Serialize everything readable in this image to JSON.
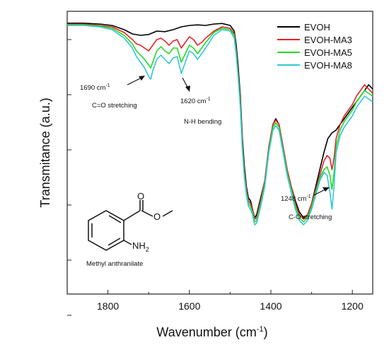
{
  "chart_data": {
    "type": "line",
    "xlabel": "Wavenumber (cm",
    "xlabel_sup": "-1",
    "xlabel_close": ")",
    "ylabel": "Transmitance (a.u.)",
    "xlim": [
      1900,
      1150
    ],
    "x_reversed": true,
    "ylim": [
      0,
      1
    ],
    "y_ticks_labeled": false,
    "xticks": [
      1800,
      1600,
      1400,
      1200
    ],
    "legend_position": "top-right",
    "series": [
      {
        "name": "EVOH",
        "color": "#000000",
        "points": [
          [
            1900,
            0.958
          ],
          [
            1860,
            0.958
          ],
          [
            1820,
            0.955
          ],
          [
            1790,
            0.95
          ],
          [
            1760,
            0.935
          ],
          [
            1740,
            0.92
          ],
          [
            1720,
            0.915
          ],
          [
            1700,
            0.918
          ],
          [
            1680,
            0.93
          ],
          [
            1660,
            0.928
          ],
          [
            1640,
            0.935
          ],
          [
            1620,
            0.945
          ],
          [
            1600,
            0.95
          ],
          [
            1580,
            0.952
          ],
          [
            1560,
            0.95
          ],
          [
            1540,
            0.955
          ],
          [
            1520,
            0.957
          ],
          [
            1500,
            0.95
          ],
          [
            1490,
            0.93
          ],
          [
            1485,
            0.88
          ],
          [
            1480,
            0.8
          ],
          [
            1475,
            0.7
          ],
          [
            1470,
            0.55
          ],
          [
            1465,
            0.45
          ],
          [
            1460,
            0.38
          ],
          [
            1455,
            0.34
          ],
          [
            1450,
            0.33
          ],
          [
            1445,
            0.3
          ],
          [
            1440,
            0.27
          ],
          [
            1435,
            0.28
          ],
          [
            1425,
            0.34
          ],
          [
            1415,
            0.4
          ],
          [
            1405,
            0.52
          ],
          [
            1395,
            0.6
          ],
          [
            1388,
            0.62
          ],
          [
            1380,
            0.6
          ],
          [
            1370,
            0.52
          ],
          [
            1360,
            0.44
          ],
          [
            1350,
            0.38
          ],
          [
            1340,
            0.33
          ],
          [
            1330,
            0.29
          ],
          [
            1320,
            0.27
          ],
          [
            1310,
            0.28
          ],
          [
            1300,
            0.32
          ],
          [
            1290,
            0.38
          ],
          [
            1280,
            0.44
          ],
          [
            1270,
            0.5
          ],
          [
            1260,
            0.55
          ],
          [
            1250,
            0.57
          ],
          [
            1240,
            0.58
          ],
          [
            1230,
            0.6
          ],
          [
            1220,
            0.62
          ],
          [
            1210,
            0.64
          ],
          [
            1200,
            0.66
          ],
          [
            1190,
            0.68
          ],
          [
            1180,
            0.7
          ],
          [
            1170,
            0.72
          ],
          [
            1160,
            0.74
          ],
          [
            1150,
            0.725
          ]
        ]
      },
      {
        "name": "EVOH-MA3",
        "color": "#e8202a",
        "points": [
          [
            1900,
            0.955
          ],
          [
            1860,
            0.955
          ],
          [
            1820,
            0.95
          ],
          [
            1790,
            0.945
          ],
          [
            1760,
            0.925
          ],
          [
            1740,
            0.9
          ],
          [
            1730,
            0.885
          ],
          [
            1720,
            0.88
          ],
          [
            1710,
            0.87
          ],
          [
            1700,
            0.86
          ],
          [
            1690,
            0.88
          ],
          [
            1680,
            0.9
          ],
          [
            1670,
            0.905
          ],
          [
            1660,
            0.895
          ],
          [
            1650,
            0.88
          ],
          [
            1640,
            0.895
          ],
          [
            1630,
            0.9
          ],
          [
            1620,
            0.87
          ],
          [
            1610,
            0.89
          ],
          [
            1600,
            0.91
          ],
          [
            1590,
            0.9
          ],
          [
            1580,
            0.88
          ],
          [
            1570,
            0.89
          ],
          [
            1560,
            0.905
          ],
          [
            1540,
            0.93
          ],
          [
            1520,
            0.945
          ],
          [
            1500,
            0.94
          ],
          [
            1490,
            0.92
          ],
          [
            1485,
            0.86
          ],
          [
            1480,
            0.78
          ],
          [
            1475,
            0.68
          ],
          [
            1470,
            0.53
          ],
          [
            1465,
            0.43
          ],
          [
            1460,
            0.37
          ],
          [
            1455,
            0.33
          ],
          [
            1450,
            0.32
          ],
          [
            1445,
            0.3
          ],
          [
            1440,
            0.265
          ],
          [
            1435,
            0.27
          ],
          [
            1425,
            0.33
          ],
          [
            1415,
            0.4
          ],
          [
            1405,
            0.52
          ],
          [
            1395,
            0.6
          ],
          [
            1388,
            0.615
          ],
          [
            1380,
            0.6
          ],
          [
            1370,
            0.52
          ],
          [
            1360,
            0.44
          ],
          [
            1350,
            0.38
          ],
          [
            1340,
            0.32
          ],
          [
            1330,
            0.28
          ],
          [
            1320,
            0.265
          ],
          [
            1310,
            0.28
          ],
          [
            1300,
            0.32
          ],
          [
            1290,
            0.37
          ],
          [
            1280,
            0.42
          ],
          [
            1270,
            0.47
          ],
          [
            1262,
            0.49
          ],
          [
            1255,
            0.48
          ],
          [
            1250,
            0.44
          ],
          [
            1245,
            0.48
          ],
          [
            1240,
            0.55
          ],
          [
            1230,
            0.6
          ],
          [
            1220,
            0.63
          ],
          [
            1210,
            0.65
          ],
          [
            1200,
            0.67
          ],
          [
            1190,
            0.7
          ],
          [
            1180,
            0.72
          ],
          [
            1170,
            0.74
          ],
          [
            1160,
            0.725
          ],
          [
            1150,
            0.71
          ]
        ]
      },
      {
        "name": "EVOH-MA5",
        "color": "#22dd22",
        "points": [
          [
            1900,
            0.952
          ],
          [
            1860,
            0.952
          ],
          [
            1820,
            0.948
          ],
          [
            1790,
            0.94
          ],
          [
            1760,
            0.915
          ],
          [
            1740,
            0.885
          ],
          [
            1730,
            0.86
          ],
          [
            1720,
            0.845
          ],
          [
            1710,
            0.83
          ],
          [
            1700,
            0.81
          ],
          [
            1695,
            0.8
          ],
          [
            1690,
            0.82
          ],
          [
            1680,
            0.86
          ],
          [
            1670,
            0.875
          ],
          [
            1660,
            0.86
          ],
          [
            1650,
            0.85
          ],
          [
            1640,
            0.87
          ],
          [
            1630,
            0.87
          ],
          [
            1620,
            0.82
          ],
          [
            1610,
            0.85
          ],
          [
            1600,
            0.88
          ],
          [
            1590,
            0.87
          ],
          [
            1580,
            0.85
          ],
          [
            1570,
            0.87
          ],
          [
            1560,
            0.89
          ],
          [
            1540,
            0.925
          ],
          [
            1520,
            0.94
          ],
          [
            1500,
            0.935
          ],
          [
            1490,
            0.915
          ],
          [
            1485,
            0.855
          ],
          [
            1480,
            0.77
          ],
          [
            1475,
            0.67
          ],
          [
            1470,
            0.52
          ],
          [
            1465,
            0.42
          ],
          [
            1460,
            0.36
          ],
          [
            1455,
            0.32
          ],
          [
            1450,
            0.31
          ],
          [
            1445,
            0.29
          ],
          [
            1440,
            0.255
          ],
          [
            1435,
            0.26
          ],
          [
            1425,
            0.32
          ],
          [
            1415,
            0.39
          ],
          [
            1405,
            0.51
          ],
          [
            1395,
            0.59
          ],
          [
            1388,
            0.605
          ],
          [
            1380,
            0.59
          ],
          [
            1370,
            0.51
          ],
          [
            1360,
            0.43
          ],
          [
            1350,
            0.37
          ],
          [
            1340,
            0.31
          ],
          [
            1330,
            0.27
          ],
          [
            1320,
            0.255
          ],
          [
            1310,
            0.27
          ],
          [
            1300,
            0.31
          ],
          [
            1290,
            0.36
          ],
          [
            1280,
            0.41
          ],
          [
            1270,
            0.44
          ],
          [
            1262,
            0.45
          ],
          [
            1255,
            0.42
          ],
          [
            1250,
            0.37
          ],
          [
            1245,
            0.43
          ],
          [
            1240,
            0.52
          ],
          [
            1230,
            0.58
          ],
          [
            1220,
            0.61
          ],
          [
            1210,
            0.63
          ],
          [
            1200,
            0.65
          ],
          [
            1190,
            0.68
          ],
          [
            1180,
            0.7
          ],
          [
            1170,
            0.72
          ],
          [
            1160,
            0.71
          ],
          [
            1150,
            0.7
          ]
        ]
      },
      {
        "name": "EVOH-MA8",
        "color": "#33c7d6",
        "points": [
          [
            1900,
            0.95
          ],
          [
            1860,
            0.95
          ],
          [
            1820,
            0.945
          ],
          [
            1790,
            0.935
          ],
          [
            1760,
            0.905
          ],
          [
            1740,
            0.87
          ],
          [
            1730,
            0.84
          ],
          [
            1720,
            0.82
          ],
          [
            1710,
            0.8
          ],
          [
            1700,
            0.77
          ],
          [
            1695,
            0.76
          ],
          [
            1690,
            0.79
          ],
          [
            1680,
            0.83
          ],
          [
            1670,
            0.845
          ],
          [
            1660,
            0.83
          ],
          [
            1650,
            0.815
          ],
          [
            1640,
            0.835
          ],
          [
            1630,
            0.84
          ],
          [
            1620,
            0.78
          ],
          [
            1610,
            0.82
          ],
          [
            1600,
            0.86
          ],
          [
            1590,
            0.85
          ],
          [
            1580,
            0.83
          ],
          [
            1570,
            0.85
          ],
          [
            1560,
            0.87
          ],
          [
            1540,
            0.915
          ],
          [
            1520,
            0.935
          ],
          [
            1500,
            0.93
          ],
          [
            1490,
            0.905
          ],
          [
            1485,
            0.845
          ],
          [
            1480,
            0.76
          ],
          [
            1475,
            0.66
          ],
          [
            1470,
            0.51
          ],
          [
            1465,
            0.41
          ],
          [
            1460,
            0.35
          ],
          [
            1455,
            0.31
          ],
          [
            1450,
            0.3
          ],
          [
            1445,
            0.28
          ],
          [
            1440,
            0.245
          ],
          [
            1435,
            0.25
          ],
          [
            1425,
            0.31
          ],
          [
            1415,
            0.38
          ],
          [
            1405,
            0.5
          ],
          [
            1395,
            0.58
          ],
          [
            1388,
            0.595
          ],
          [
            1380,
            0.58
          ],
          [
            1370,
            0.5
          ],
          [
            1360,
            0.42
          ],
          [
            1350,
            0.36
          ],
          [
            1340,
            0.3
          ],
          [
            1330,
            0.26
          ],
          [
            1320,
            0.245
          ],
          [
            1310,
            0.26
          ],
          [
            1300,
            0.3
          ],
          [
            1290,
            0.35
          ],
          [
            1280,
            0.4
          ],
          [
            1270,
            0.43
          ],
          [
            1262,
            0.42
          ],
          [
            1255,
            0.36
          ],
          [
            1250,
            0.3
          ],
          [
            1245,
            0.38
          ],
          [
            1240,
            0.5
          ],
          [
            1230,
            0.56
          ],
          [
            1220,
            0.59
          ],
          [
            1210,
            0.61
          ],
          [
            1200,
            0.63
          ],
          [
            1190,
            0.66
          ],
          [
            1180,
            0.68
          ],
          [
            1170,
            0.7
          ],
          [
            1160,
            0.69
          ],
          [
            1150,
            0.68
          ]
        ]
      }
    ],
    "annotations": [
      {
        "id": "c-o-stretch-1690",
        "value_text": "1690 cm",
        "sup": "-1",
        "assignment": "C=O stretching"
      },
      {
        "id": "n-h-bend-1620",
        "value_text": "1620 cm",
        "sup": "-1",
        "assignment": "N-H bending"
      },
      {
        "id": "c-o-stretch-1248",
        "value_text": "1248 cm",
        "sup": "-1",
        "assignment": "C-O stretching"
      }
    ],
    "molecule": {
      "name": "Methyl anthranilate",
      "atom_o1": "O",
      "atom_o2": "O",
      "group_nh2": "NH",
      "group_nh2_sub": "2"
    }
  }
}
